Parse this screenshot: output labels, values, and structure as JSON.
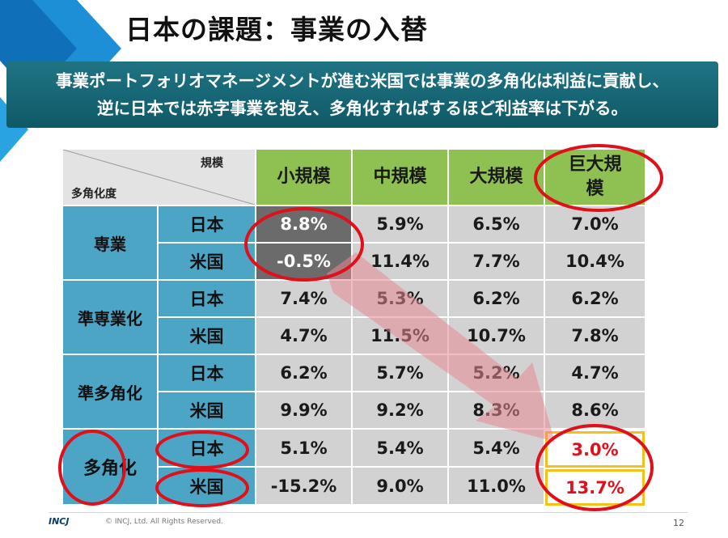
{
  "slide": {
    "title": "日本の課題：事業の入替",
    "banner_lines": [
      "事業ポートフォリオマネージメントが進む米国では事業の多角化は利益に貢献し、",
      "逆に日本では赤字事業を抱え、多角化すればするほど利益率は下がる。"
    ],
    "footer_logo": "INCJ",
    "copyright": "© INCJ, Ltd. All Rights Reserved.",
    "page_number": "12"
  },
  "table": {
    "corner_top": "規模",
    "corner_bottom": "多角化度",
    "columns": [
      "小規模",
      "中規模",
      "大規模",
      "巨大規模"
    ],
    "groups": [
      {
        "label": "専業",
        "rows": [
          {
            "country": "日本",
            "values": [
              "8.8%",
              "5.9%",
              "6.5%",
              "7.0%"
            ]
          },
          {
            "country": "米国",
            "values": [
              "-0.5%",
              "11.4%",
              "7.7%",
              "10.4%"
            ]
          }
        ]
      },
      {
        "label": "準専業化",
        "rows": [
          {
            "country": "日本",
            "values": [
              "7.4%",
              "5.3%",
              "6.2%",
              "6.2%"
            ]
          },
          {
            "country": "米国",
            "values": [
              "4.7%",
              "11.5%",
              "10.7%",
              "7.8%"
            ]
          }
        ]
      },
      {
        "label": "準多角化",
        "rows": [
          {
            "country": "日本",
            "values": [
              "6.2%",
              "5.7%",
              "5.2%",
              "4.7%"
            ]
          },
          {
            "country": "米国",
            "values": [
              "9.9%",
              "9.2%",
              "8.3%",
              "8.6%"
            ]
          }
        ]
      },
      {
        "label": "多角化",
        "rows": [
          {
            "country": "日本",
            "values": [
              "5.1%",
              "5.4%",
              "5.4%",
              "3.0%"
            ]
          },
          {
            "country": "米国",
            "values": [
              "-15.2%",
              "9.0%",
              "11.0%",
              "13.7%"
            ]
          }
        ]
      }
    ]
  },
  "colors": {
    "banner": "#17697a",
    "column_header": "#8fc152",
    "row_header": "#4ca5c5",
    "value_cell": "#d2d2d2",
    "dark_cell": "#6b6b6b",
    "highlight_text": "#e0101a",
    "highlight_border": "#f2c21b",
    "annotation_circle": "#e0101a",
    "arrow": "#e58b91"
  }
}
